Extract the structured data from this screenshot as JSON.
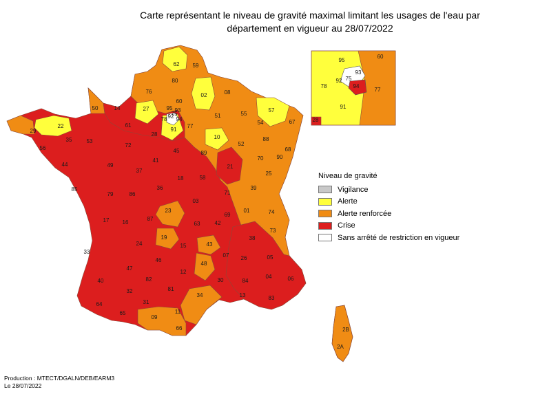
{
  "title": {
    "line1": "Carte représentant le niveau de gravité maximal limitant les usages de l'eau par",
    "line2": "département en vigueur au 28/07/2022"
  },
  "colors": {
    "vigilance": "#c8c8c8",
    "alerte": "#ffff3c",
    "alerte_renforcee": "#f08c14",
    "crise": "#dc1e1e",
    "sans": "#ffffff"
  },
  "legend": {
    "title": "Niveau de gravité",
    "items": [
      {
        "label": "Vigilance",
        "level": "vigilance"
      },
      {
        "label": "Alerte",
        "level": "alerte"
      },
      {
        "label": "Alerte renforcée",
        "level": "alerte_renforcee"
      },
      {
        "label": "Crise",
        "level": "crise"
      },
      {
        "label": "Sans arrêté de restriction en vigueur",
        "level": "sans"
      }
    ]
  },
  "departments": [
    {
      "code": "62",
      "level": "alerte"
    },
    {
      "code": "59",
      "level": "alerte_renforcee"
    },
    {
      "code": "80",
      "level": "alerte_renforcee"
    },
    {
      "code": "76",
      "level": "alerte_renforcee"
    },
    {
      "code": "60",
      "level": "alerte_renforcee"
    },
    {
      "code": "02",
      "level": "alerte"
    },
    {
      "code": "08",
      "level": "alerte_renforcee"
    },
    {
      "code": "50",
      "level": "alerte_renforcee"
    },
    {
      "code": "14",
      "level": "crise"
    },
    {
      "code": "27",
      "level": "alerte"
    },
    {
      "code": "95",
      "level": "alerte"
    },
    {
      "code": "78",
      "level": "alerte"
    },
    {
      "code": "92",
      "level": "sans"
    },
    {
      "code": "93",
      "level": "sans"
    },
    {
      "code": "91",
      "level": "alerte"
    },
    {
      "code": "94",
      "level": "crise"
    },
    {
      "code": "75",
      "level": "sans"
    },
    {
      "code": "77",
      "level": "alerte_renforcee"
    },
    {
      "code": "51",
      "level": "alerte_renforcee"
    },
    {
      "code": "55",
      "level": "alerte_renforcee"
    },
    {
      "code": "57",
      "level": "alerte"
    },
    {
      "code": "54",
      "level": "alerte_renforcee"
    },
    {
      "code": "67",
      "level": "alerte_renforcee"
    },
    {
      "code": "29",
      "level": "alerte_renforcee"
    },
    {
      "code": "22",
      "level": "alerte"
    },
    {
      "code": "61",
      "level": "crise"
    },
    {
      "code": "28",
      "level": "crise"
    },
    {
      "code": "10",
      "level": "alerte"
    },
    {
      "code": "52",
      "level": "alerte_renforcee"
    },
    {
      "code": "88",
      "level": "alerte_renforcee"
    },
    {
      "code": "68",
      "level": "alerte_renforcee"
    },
    {
      "code": "56",
      "level": "crise"
    },
    {
      "code": "35",
      "level": "crise"
    },
    {
      "code": "53",
      "level": "crise"
    },
    {
      "code": "72",
      "level": "crise"
    },
    {
      "code": "45",
      "level": "crise"
    },
    {
      "code": "89",
      "level": "alerte_renforcee"
    },
    {
      "code": "21",
      "level": "crise"
    },
    {
      "code": "70",
      "level": "alerte_renforcee"
    },
    {
      "code": "90",
      "level": "alerte_renforcee"
    },
    {
      "code": "44",
      "level": "crise"
    },
    {
      "code": "49",
      "level": "crise"
    },
    {
      "code": "37",
      "level": "crise"
    },
    {
      "code": "41",
      "level": "crise"
    },
    {
      "code": "18",
      "level": "crise"
    },
    {
      "code": "58",
      "level": "alerte_renforcee"
    },
    {
      "code": "25",
      "level": "alerte_renforcee"
    },
    {
      "code": "39",
      "level": "alerte_renforcee"
    },
    {
      "code": "85",
      "level": "crise"
    },
    {
      "code": "79",
      "level": "crise"
    },
    {
      "code": "86",
      "level": "crise"
    },
    {
      "code": "36",
      "level": "crise"
    },
    {
      "code": "71",
      "level": "alerte_renforcee"
    },
    {
      "code": "03",
      "level": "crise"
    },
    {
      "code": "01",
      "level": "alerte_renforcee"
    },
    {
      "code": "74",
      "level": "alerte_renforcee"
    },
    {
      "code": "17",
      "level": "crise"
    },
    {
      "code": "16",
      "level": "crise"
    },
    {
      "code": "87",
      "level": "crise"
    },
    {
      "code": "23",
      "level": "alerte_renforcee"
    },
    {
      "code": "63",
      "level": "crise"
    },
    {
      "code": "42",
      "level": "alerte_renforcee"
    },
    {
      "code": "69",
      "level": "alerte_renforcee"
    },
    {
      "code": "73",
      "level": "alerte_renforcee"
    },
    {
      "code": "38",
      "level": "crise"
    },
    {
      "code": "19",
      "level": "alerte_renforcee"
    },
    {
      "code": "15",
      "level": "crise"
    },
    {
      "code": "43",
      "level": "alerte_renforcee"
    },
    {
      "code": "07",
      "level": "crise"
    },
    {
      "code": "26",
      "level": "crise"
    },
    {
      "code": "05",
      "level": "crise"
    },
    {
      "code": "33",
      "level": "crise"
    },
    {
      "code": "24",
      "level": "crise"
    },
    {
      "code": "46",
      "level": "crise"
    },
    {
      "code": "12",
      "level": "crise"
    },
    {
      "code": "48",
      "level": "alerte_renforcee"
    },
    {
      "code": "30",
      "level": "crise"
    },
    {
      "code": "84",
      "level": "alerte_renforcee"
    },
    {
      "code": "04",
      "level": "alerte_renforcee"
    },
    {
      "code": "06",
      "level": "crise"
    },
    {
      "code": "47",
      "level": "crise"
    },
    {
      "code": "82",
      "level": "crise"
    },
    {
      "code": "81",
      "level": "crise"
    },
    {
      "code": "40",
      "level": "crise"
    },
    {
      "code": "32",
      "level": "crise"
    },
    {
      "code": "34",
      "level": "alerte_renforcee"
    },
    {
      "code": "13",
      "level": "crise"
    },
    {
      "code": "83",
      "level": "crise"
    },
    {
      "code": "64",
      "level": "crise"
    },
    {
      "code": "65",
      "level": "crise"
    },
    {
      "code": "31",
      "level": "crise"
    },
    {
      "code": "09",
      "level": "alerte_renforcee"
    },
    {
      "code": "11",
      "level": "alerte_renforcee"
    },
    {
      "code": "66",
      "level": "alerte_renforcee"
    },
    {
      "code": "2B",
      "level": "alerte_renforcee"
    },
    {
      "code": "2A",
      "level": "alerte_renforcee"
    }
  ],
  "inset": [
    {
      "code": "95",
      "level": "alerte"
    },
    {
      "code": "60",
      "level": "alerte_renforcee"
    },
    {
      "code": "93",
      "level": "sans"
    },
    {
      "code": "75",
      "level": "sans"
    },
    {
      "code": "92",
      "level": "sans"
    },
    {
      "code": "94",
      "level": "crise"
    },
    {
      "code": "78",
      "level": "alerte"
    },
    {
      "code": "77",
      "level": "alerte_renforcee"
    },
    {
      "code": "91",
      "level": "alerte"
    },
    {
      "code": "28",
      "level": "crise"
    }
  ],
  "footer": {
    "line1": "Production : MTECT/DGALN/DEB/EARM3",
    "line2": "Le 28/07/2022"
  }
}
